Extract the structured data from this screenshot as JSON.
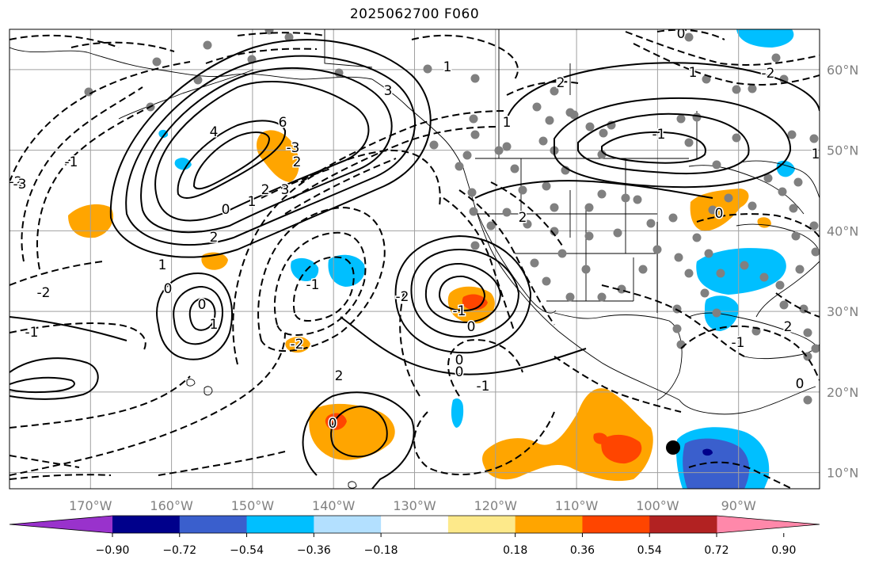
{
  "title": "2025062700 F060",
  "map": {
    "lon_range": [
      -180,
      -80
    ],
    "lat_range": [
      8,
      65
    ],
    "lon_labels": [
      "170°W",
      "160°W",
      "150°W",
      "140°W",
      "130°W",
      "120°W",
      "110°W",
      "100°W",
      "90°W"
    ],
    "lat_labels": [
      "60°N",
      "50°N",
      "40°N",
      "30°N",
      "20°N",
      "10°N"
    ],
    "grid": true,
    "contours": {
      "positive_style": "solid",
      "negative_style": "dashed",
      "labels": [
        "6",
        "4",
        "2",
        "1",
        "0",
        "-1",
        "-2",
        "-3",
        "3",
        "2",
        "1",
        "0",
        "-1",
        "-2",
        "-3",
        "0",
        "1",
        "2",
        "0",
        "-1",
        "-2",
        "2",
        "3",
        "0",
        "-1",
        "-2",
        "1",
        "2",
        "0",
        "-1",
        "0",
        "1",
        "2",
        "0",
        "-1",
        "-2",
        "1",
        "0",
        "-1",
        "2",
        "1",
        "0"
      ]
    },
    "shading": {
      "positive_colors": [
        "#fde98a",
        "#ffa500",
        "#ff4500"
      ],
      "negative_colors": [
        "#b3e0ff",
        "#00bfff",
        "#3a5fcd"
      ]
    },
    "station_marker_color": "#808080"
  },
  "colorbar": {
    "colors": [
      "#9932cc",
      "#00008b",
      "#3a5fcd",
      "#00bfff",
      "#b3e0ff",
      "#ffffff",
      "#fde98a",
      "#ffa500",
      "#ff4500",
      "#b22222",
      "#ff88aa"
    ],
    "ticks": [
      "−0.90",
      "−0.72",
      "−0.54",
      "−0.36",
      "−0.18",
      "0.18",
      "0.36",
      "0.54",
      "0.72",
      "0.90"
    ],
    "extend": "both"
  }
}
